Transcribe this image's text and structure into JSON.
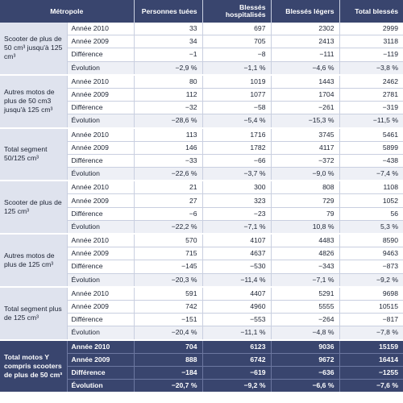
{
  "headers": {
    "region": "Métropole",
    "killed": "Personnes tuées",
    "hospitalised": "Blessés hospitalisés",
    "light": "Blessés légers",
    "total": "Total blessés"
  },
  "groups": [
    {
      "segment": "Scooter de plus de 50 cm³ jusqu'à 125 cm³",
      "rows": [
        {
          "label": "Année 2010",
          "killed": "33",
          "hospitalised": "697",
          "light": "2302",
          "total": "2999"
        },
        {
          "label": "Année 2009",
          "killed": "34",
          "hospitalised": "705",
          "light": "2413",
          "total": "3118"
        },
        {
          "label": "Différence",
          "killed": "−1",
          "hospitalised": "−8",
          "light": "−111",
          "total": "−119"
        },
        {
          "label": "Évolution",
          "killed": "−2,9 %",
          "hospitalised": "−1,1 %",
          "light": "−4,6 %",
          "total": "−3,8 %"
        }
      ]
    },
    {
      "segment": "Autres motos de plus de 50 cm3 jusqu'à 125 cm³",
      "rows": [
        {
          "label": "Année 2010",
          "killed": "80",
          "hospitalised": "1019",
          "light": "1443",
          "total": "2462"
        },
        {
          "label": "Année 2009",
          "killed": "112",
          "hospitalised": "1077",
          "light": "1704",
          "total": "2781"
        },
        {
          "label": "Différence",
          "killed": "−32",
          "hospitalised": "−58",
          "light": "−261",
          "total": "−319"
        },
        {
          "label": "Évolution",
          "killed": "−28,6 %",
          "hospitalised": "−5,4 %",
          "light": "−15,3 %",
          "total": "−11,5 %"
        }
      ]
    },
    {
      "segment": "Total segment 50/125 cm³",
      "rows": [
        {
          "label": "Année 2010",
          "killed": "113",
          "hospitalised": "1716",
          "light": "3745",
          "total": "5461"
        },
        {
          "label": "Année 2009",
          "killed": "146",
          "hospitalised": "1782",
          "light": "4117",
          "total": "5899"
        },
        {
          "label": "Différence",
          "killed": "−33",
          "hospitalised": "−66",
          "light": "−372",
          "total": "−438"
        },
        {
          "label": "Évolution",
          "killed": "−22,6 %",
          "hospitalised": "−3,7 %",
          "light": "−9,0 %",
          "total": "−7,4 %"
        }
      ]
    },
    {
      "segment": "Scooter de plus de 125 cm³",
      "rows": [
        {
          "label": "Année 2010",
          "killed": "21",
          "hospitalised": "300",
          "light": "808",
          "total": "1108"
        },
        {
          "label": "Année 2009",
          "killed": "27",
          "hospitalised": "323",
          "light": "729",
          "total": "1052"
        },
        {
          "label": "Différence",
          "killed": "−6",
          "hospitalised": "−23",
          "light": "79",
          "total": "56"
        },
        {
          "label": "Évolution",
          "killed": "−22,2 %",
          "hospitalised": "−7,1 %",
          "light": "10,8 %",
          "total": "5,3 %"
        }
      ]
    },
    {
      "segment": "Autres motos de plus de 125 cm³",
      "rows": [
        {
          "label": "Année 2010",
          "killed": "570",
          "hospitalised": "4107",
          "light": "4483",
          "total": "8590"
        },
        {
          "label": "Année 2009",
          "killed": "715",
          "hospitalised": "4637",
          "light": "4826",
          "total": "9463"
        },
        {
          "label": "Différence",
          "killed": "−145",
          "hospitalised": "−530",
          "light": "−343",
          "total": "−873"
        },
        {
          "label": "Évolution",
          "killed": "−20,3 %",
          "hospitalised": "−11,4 %",
          "light": "−7,1 %",
          "total": "−9,2 %"
        }
      ]
    },
    {
      "segment": "Total segment plus de 125 cm³",
      "rows": [
        {
          "label": "Année 2010",
          "killed": "591",
          "hospitalised": "4407",
          "light": "5291",
          "total": "9698"
        },
        {
          "label": "Année 2009",
          "killed": "742",
          "hospitalised": "4960",
          "light": "5555",
          "total": "10515"
        },
        {
          "label": "Différence",
          "killed": "−151",
          "hospitalised": "−553",
          "light": "−264",
          "total": "−817"
        },
        {
          "label": "Évolution",
          "killed": "−20,4 %",
          "hospitalised": "−11,1 %",
          "light": "−4,8 %",
          "total": "−7,8 %"
        }
      ]
    },
    {
      "segment": "Total motos Y compris scooters de plus de 50 cm³",
      "is_total": true,
      "rows": [
        {
          "label": "Année 2010",
          "killed": "704",
          "hospitalised": "6123",
          "light": "9036",
          "total": "15159"
        },
        {
          "label": "Année 2009",
          "killed": "888",
          "hospitalised": "6742",
          "light": "9672",
          "total": "16414"
        },
        {
          "label": "Différence",
          "killed": "−184",
          "hospitalised": "−619",
          "light": "−636",
          "total": "−1255"
        },
        {
          "label": "Évolution",
          "killed": "−20,7 %",
          "hospitalised": "−9,2 %",
          "light": "−6,6 %",
          "total": "−7,6 %"
        }
      ]
    }
  ]
}
